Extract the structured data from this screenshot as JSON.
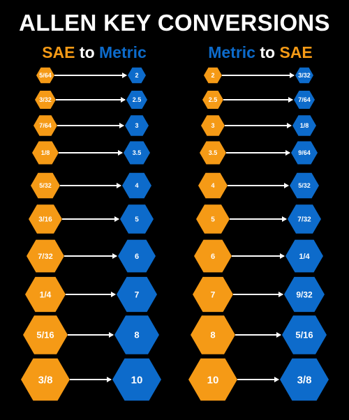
{
  "title": "ALLEN KEY CONVERSIONS",
  "colors": {
    "sae": "#f59a16",
    "metric": "#0d6bcb",
    "background": "#000000",
    "text": "#ffffff"
  },
  "icons": {
    "hex": "hexagon-icon",
    "arrow": "right-arrow-icon"
  },
  "left_header": {
    "from": "SAE",
    "connector": "to",
    "to": "Metric"
  },
  "right_header": {
    "from": "Metric",
    "connector": "to",
    "to": "SAE"
  },
  "sae_to_metric": [
    {
      "from": "5/64",
      "to": "2"
    },
    {
      "from": "3/32",
      "to": "2.5"
    },
    {
      "from": "7/64",
      "to": "3"
    },
    {
      "from": "1/8",
      "to": "3.5"
    },
    {
      "from": "5/32",
      "to": "4"
    },
    {
      "from": "3/16",
      "to": "5"
    },
    {
      "from": "7/32",
      "to": "6"
    },
    {
      "from": "1/4",
      "to": "7"
    },
    {
      "from": "5/16",
      "to": "8"
    },
    {
      "from": "3/8",
      "to": "10"
    }
  ],
  "metric_to_sae": [
    {
      "from": "2",
      "to": "3/32"
    },
    {
      "from": "2.5",
      "to": "7/64"
    },
    {
      "from": "3",
      "to": "1/8"
    },
    {
      "from": "3.5",
      "to": "9/64"
    },
    {
      "from": "4",
      "to": "5/32"
    },
    {
      "from": "5",
      "to": "7/32"
    },
    {
      "from": "6",
      "to": "1/4"
    },
    {
      "from": "7",
      "to": "9/32"
    },
    {
      "from": "8",
      "to": "5/16"
    },
    {
      "from": "10",
      "to": "3/8"
    }
  ]
}
